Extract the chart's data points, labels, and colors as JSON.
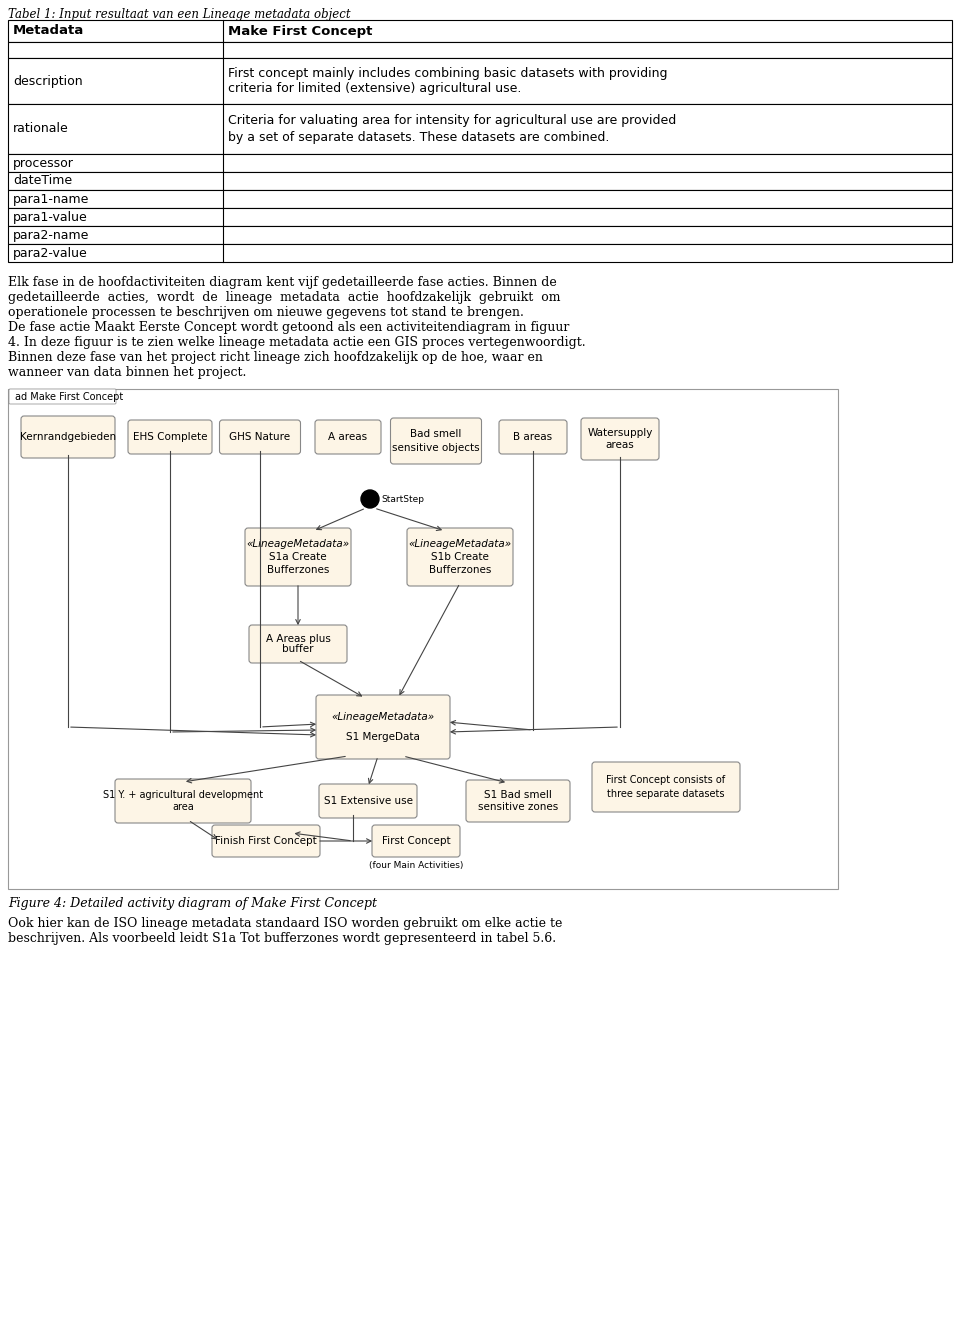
{
  "title": "Tabel 1: Input resultaat van een Lineage metadata object",
  "table_headers": [
    "Metadata",
    "Make First Concept"
  ],
  "table_rows": [
    [
      "",
      ""
    ],
    [
      "description",
      "First concept mainly includes combining basic datasets with providing\ncriteria for limited (extensive) agricultural use."
    ],
    [
      "rationale",
      "Criteria for valuating area for intensity for agricultural use are provided\nby a set of separate datasets. These datasets are combined."
    ],
    [
      "processor",
      ""
    ],
    [
      "dateTime",
      ""
    ],
    [
      "para1-name",
      ""
    ],
    [
      "para1-value",
      ""
    ],
    [
      "para2-name",
      ""
    ],
    [
      "para2-value",
      ""
    ]
  ],
  "para1_lines": [
    "Elk fase in de hoofdactiviteiten diagram kent vijf gedetailleerde fase acties. Binnen de",
    "gedetailleerde  acties,  wordt  de  lineage  metadata  actie  hoofdzakelijk  gebruikt  om",
    "operationele processen te beschrijven om nieuwe gegevens tot stand te brengen.",
    "De fase actie Maakt Eerste Concept wordt getoond als een activiteitendiagram in figuur",
    "4. In deze figuur is te zien welke lineage metadata actie een GIS proces vertegenwoordigt.",
    "Binnen deze fase van het project richt lineage zich hoofdzakelijk op de hoe, waar en",
    "wanneer van data binnen het project."
  ],
  "diagram_title": "ad Make First Concept",
  "diagram_caption": "Figure 4: Detailed activity diagram of Make First Concept",
  "para2_lines": [
    "Ook hier kan de ISO lineage metadata standaard ISO worden gebruikt om elke actie te",
    "beschrijven. Als voorbeeld leidt S1a Tot bufferzones wordt gepresenteerd in tabel 5.6."
  ],
  "bg_color": "#ffffff",
  "node_fill": "#fdf5e6",
  "node_border": "#888888"
}
